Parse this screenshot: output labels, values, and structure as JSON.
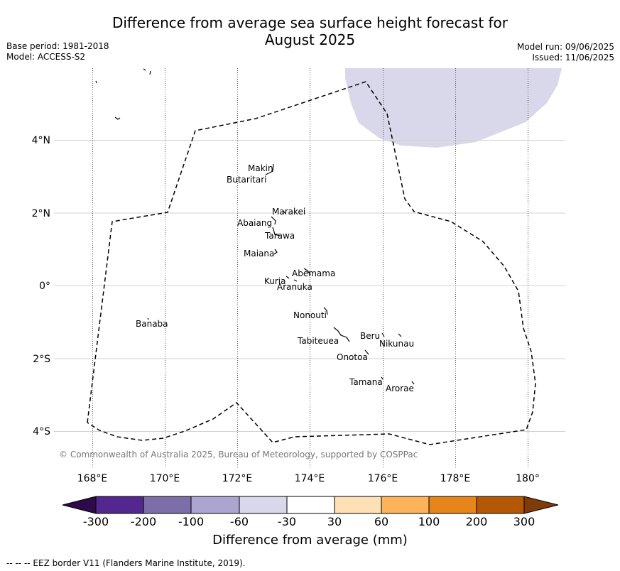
{
  "title": {
    "line1": "Difference from average sea surface height forecast for",
    "line2": "August 2025"
  },
  "meta": {
    "base_period": "Base period: 1981-2018",
    "model": "Model: ACCESS-S2",
    "model_run": "Model run: 09/06/2025",
    "issued": "Issued: 11/06/2025"
  },
  "axes": {
    "x_ticks": [
      "168°E",
      "170°E",
      "172°E",
      "174°E",
      "176°E",
      "178°E",
      "180°"
    ],
    "y_ticks": [
      "4°N",
      "2°N",
      "0°",
      "2°S",
      "4°S"
    ]
  },
  "places": {
    "makin": "Makin",
    "butaritari": "Butaritari",
    "marakei": "Marakei",
    "abaiang": "Abaiang",
    "tarawa": "Tarawa",
    "maiana": "Maiana",
    "abemama": "Abemama",
    "kuria": "Kuria",
    "aranuka": "Aranuka",
    "nonouti": "Nonouti",
    "banaba": "Banaba",
    "beru": "Beru",
    "nikunau": "Nikunau",
    "tabiteuea": "Tabiteuea",
    "onotoa": "Onotoa",
    "tamana": "Tamana",
    "arorae": "Arorae"
  },
  "copyright": "© Commonwealth of Australia 2025, Bureau of Meteorology, supported by COSPPac",
  "colorbar": {
    "title": "Difference from average (mm)",
    "labels": [
      "-300",
      "-200",
      "-100",
      "-60",
      "-30",
      "30",
      "60",
      "100",
      "200",
      "300"
    ],
    "colors": [
      "#2d0a4a",
      "#54278f",
      "#7d6eaa",
      "#aca5d0",
      "#d8d8ea",
      "#ffffff",
      "#fde0b6",
      "#fdb35c",
      "#e6861a",
      "#b35806",
      "#7f3b08"
    ]
  },
  "footnote": "--  --  -- EEZ border V11 (Flanders Marine Institute, 2019)."
}
